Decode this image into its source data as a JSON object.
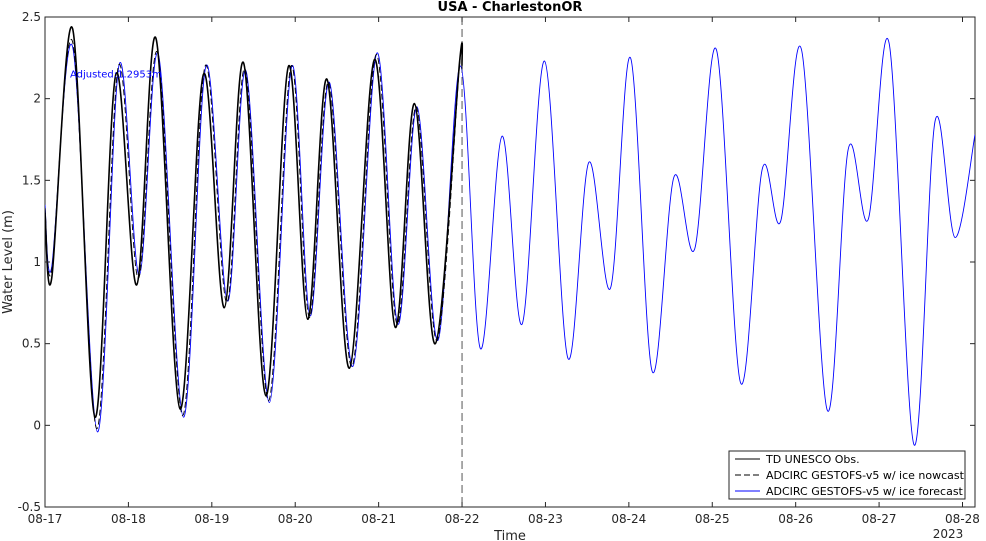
{
  "chart_data": {
    "type": "line",
    "title": "USA - CharlestonOR",
    "xlabel": "Time",
    "ylabel": "Water Level (m)",
    "xlim": [
      0,
      11.15
    ],
    "ylim": [
      -0.5,
      2.5
    ],
    "x_ticks": [
      {
        "x": 0,
        "label": "08-17"
      },
      {
        "x": 1,
        "label": "08-18"
      },
      {
        "x": 2,
        "label": "08-19"
      },
      {
        "x": 3,
        "label": "08-20"
      },
      {
        "x": 4,
        "label": "08-21"
      },
      {
        "x": 5,
        "label": "08-22"
      },
      {
        "x": 6,
        "label": "08-23"
      },
      {
        "x": 7,
        "label": "08-24"
      },
      {
        "x": 8,
        "label": "08-25"
      },
      {
        "x": 9,
        "label": "08-26"
      },
      {
        "x": 10,
        "label": "08-27"
      },
      {
        "x": 11,
        "label": "08-28"
      }
    ],
    "y_ticks": [
      -0.5,
      0,
      0.5,
      1,
      1.5,
      2,
      2.5
    ],
    "year_label": "2023",
    "nowcast_line_x": 5,
    "annotation": {
      "text": "Adjusted:1.2953m",
      "x": 0.3,
      "y": 2.13,
      "color": "#0000ff"
    },
    "legend_position": "bottom-right",
    "grid": false,
    "series": [
      {
        "name": "TD UNESCO Obs.",
        "color": "#000000",
        "style": "solid",
        "points": [
          [
            0,
            1.3
          ],
          [
            0.08,
            0.9
          ],
          [
            0.33,
            2.43
          ],
          [
            0.6,
            0.05
          ],
          [
            0.85,
            2.15
          ],
          [
            1.1,
            0.86
          ],
          [
            1.33,
            2.37
          ],
          [
            1.62,
            0.1
          ],
          [
            1.9,
            2.15
          ],
          [
            2.15,
            0.72
          ],
          [
            2.38,
            2.22
          ],
          [
            2.65,
            0.18
          ],
          [
            2.92,
            2.2
          ],
          [
            3.15,
            0.65
          ],
          [
            3.38,
            2.12
          ],
          [
            3.65,
            0.35
          ],
          [
            3.95,
            2.24
          ],
          [
            4.2,
            0.6
          ],
          [
            4.43,
            1.97
          ],
          [
            4.68,
            0.5
          ],
          [
            4.97,
            2.22
          ],
          [
            5,
            2.2
          ]
        ]
      },
      {
        "name": "ADCIRC GESTOFS-v5 w/ ice nowcast",
        "color": "#000000",
        "style": "dashed",
        "points": [
          [
            0,
            1.33
          ],
          [
            0.08,
            0.95
          ],
          [
            0.33,
            2.35
          ],
          [
            0.62,
            -0.02
          ],
          [
            0.88,
            2.2
          ],
          [
            1.12,
            0.9
          ],
          [
            1.35,
            2.28
          ],
          [
            1.65,
            0.06
          ],
          [
            1.92,
            2.2
          ],
          [
            2.18,
            0.75
          ],
          [
            2.4,
            2.18
          ],
          [
            2.68,
            0.15
          ],
          [
            2.95,
            2.2
          ],
          [
            3.17,
            0.66
          ],
          [
            3.4,
            2.1
          ],
          [
            3.68,
            0.36
          ],
          [
            3.97,
            2.27
          ],
          [
            4.22,
            0.62
          ],
          [
            4.45,
            1.95
          ],
          [
            4.7,
            0.52
          ],
          [
            4.97,
            2.2
          ],
          [
            5,
            2.18
          ]
        ]
      },
      {
        "name": "ADCIRC GESTOFS-v5 w/ ice forecast",
        "color": "#0000ff",
        "style": "solid",
        "points": [
          [
            0,
            1.35
          ],
          [
            0.08,
            0.97
          ],
          [
            0.33,
            2.32
          ],
          [
            0.63,
            -0.04
          ],
          [
            0.89,
            2.21
          ],
          [
            1.13,
            0.92
          ],
          [
            1.36,
            2.27
          ],
          [
            1.66,
            0.05
          ],
          [
            1.93,
            2.2
          ],
          [
            2.19,
            0.76
          ],
          [
            2.41,
            2.17
          ],
          [
            2.69,
            0.14
          ],
          [
            2.96,
            2.2
          ],
          [
            3.18,
            0.67
          ],
          [
            3.41,
            2.1
          ],
          [
            3.69,
            0.36
          ],
          [
            3.98,
            2.28
          ],
          [
            4.23,
            0.62
          ],
          [
            4.46,
            1.95
          ],
          [
            4.71,
            0.52
          ],
          [
            4.98,
            2.2
          ],
          [
            5.22,
            0.47
          ],
          [
            5.48,
            1.77
          ],
          [
            5.72,
            0.62
          ],
          [
            5.99,
            2.23
          ],
          [
            6.27,
            0.41
          ],
          [
            6.52,
            1.61
          ],
          [
            6.78,
            0.84
          ],
          [
            7.02,
            2.25
          ],
          [
            7.28,
            0.33
          ],
          [
            7.54,
            1.52
          ],
          [
            7.79,
            1.08
          ],
          [
            8.05,
            2.3
          ],
          [
            8.34,
            0.26
          ],
          [
            8.6,
            1.57
          ],
          [
            8.82,
            1.25
          ],
          [
            9.07,
            2.3
          ],
          [
            9.38,
            0.09
          ],
          [
            9.63,
            1.69
          ],
          [
            9.87,
            1.26
          ],
          [
            10.12,
            2.34
          ],
          [
            10.42,
            -0.12
          ],
          [
            10.67,
            1.86
          ],
          [
            10.91,
            1.15
          ],
          [
            11.15,
            1.78
          ]
        ]
      }
    ]
  }
}
